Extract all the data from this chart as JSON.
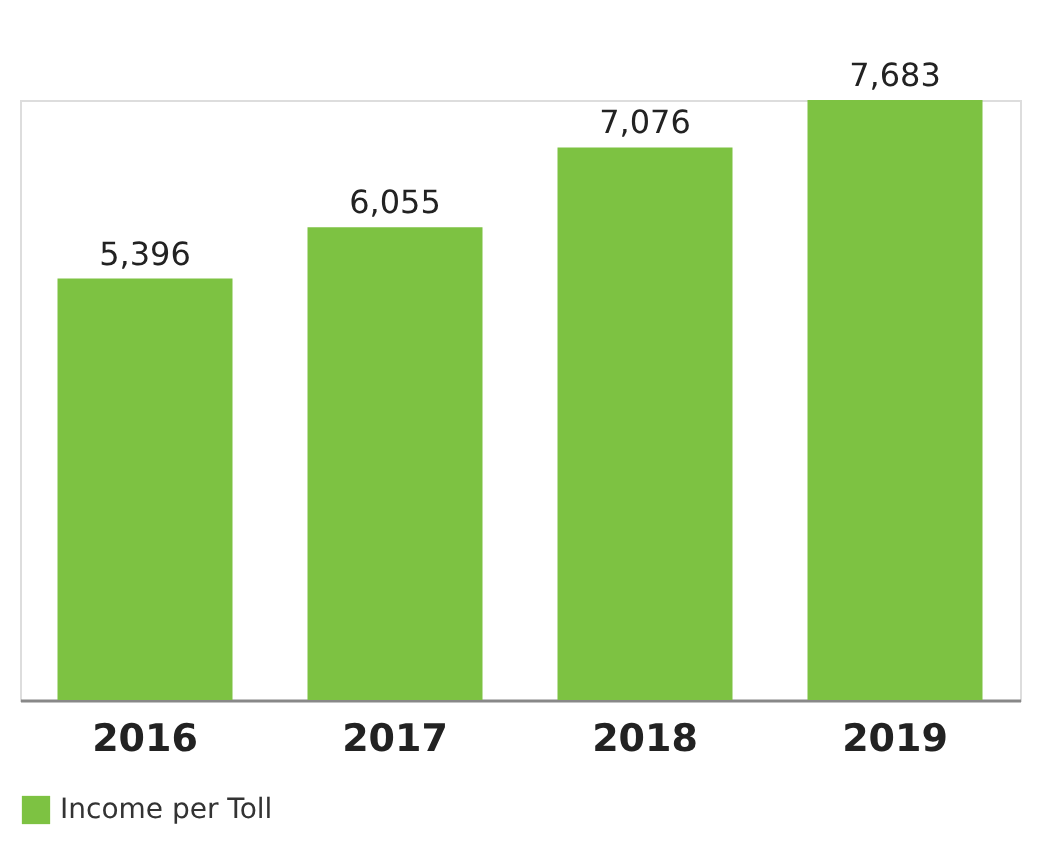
{
  "chart_data": {
    "type": "bar",
    "categories": [
      "2016",
      "2017",
      "2018",
      "2019"
    ],
    "series": [
      {
        "name": "Income per Toll",
        "color": "#7dc242",
        "values": [
          5396,
          6055,
          7076,
          7683
        ],
        "value_labels": [
          "5,396",
          "6,055",
          "7,076",
          "7,683"
        ]
      }
    ],
    "tick_labels": "x",
    "grid": false,
    "legend": "bottom"
  }
}
